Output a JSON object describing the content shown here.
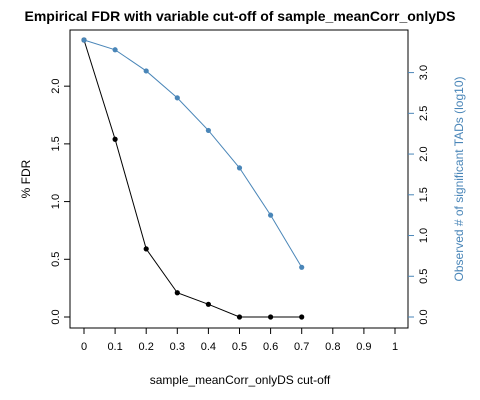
{
  "chart_data": {
    "type": "line",
    "title": "Empirical FDR with variable cut-off of sample_meanCorr_onlyDS",
    "xlabel": "sample_meanCorr_onlyDS cut-off",
    "ylabel": "% FDR",
    "ylabel_right": "Observed # of significant TADs (log10)",
    "xlim": [
      0,
      1
    ],
    "ylim": [
      0,
      2.4
    ],
    "ylim_right": [
      0,
      3.4
    ],
    "x_ticks": [
      "0",
      "0.1",
      "0.2",
      "0.3",
      "0.4",
      "0.5",
      "0.6",
      "0.7",
      "0.8",
      "0.9",
      "1"
    ],
    "y_ticks": [
      "0.0",
      "0.5",
      "1.0",
      "1.5",
      "2.0"
    ],
    "y_right_ticks": [
      "0.0",
      "0.5",
      "1.0",
      "1.5",
      "2.0",
      "2.5",
      "3.0"
    ],
    "grid": false,
    "series": [
      {
        "axis": "left",
        "color": "#000000",
        "x": [
          0,
          0.1,
          0.2,
          0.3,
          0.4,
          0.5,
          0.6,
          0.7
        ],
        "values": [
          2.4,
          1.54,
          0.59,
          0.21,
          0.11,
          0.0,
          0.0,
          0.0
        ]
      },
      {
        "axis": "right",
        "color": "#4a86b8",
        "x": [
          0,
          0.1,
          0.2,
          0.3,
          0.4,
          0.5,
          0.6,
          0.7
        ],
        "values": [
          3.4,
          3.28,
          3.02,
          2.69,
          2.29,
          1.83,
          1.25,
          0.61
        ]
      }
    ]
  }
}
